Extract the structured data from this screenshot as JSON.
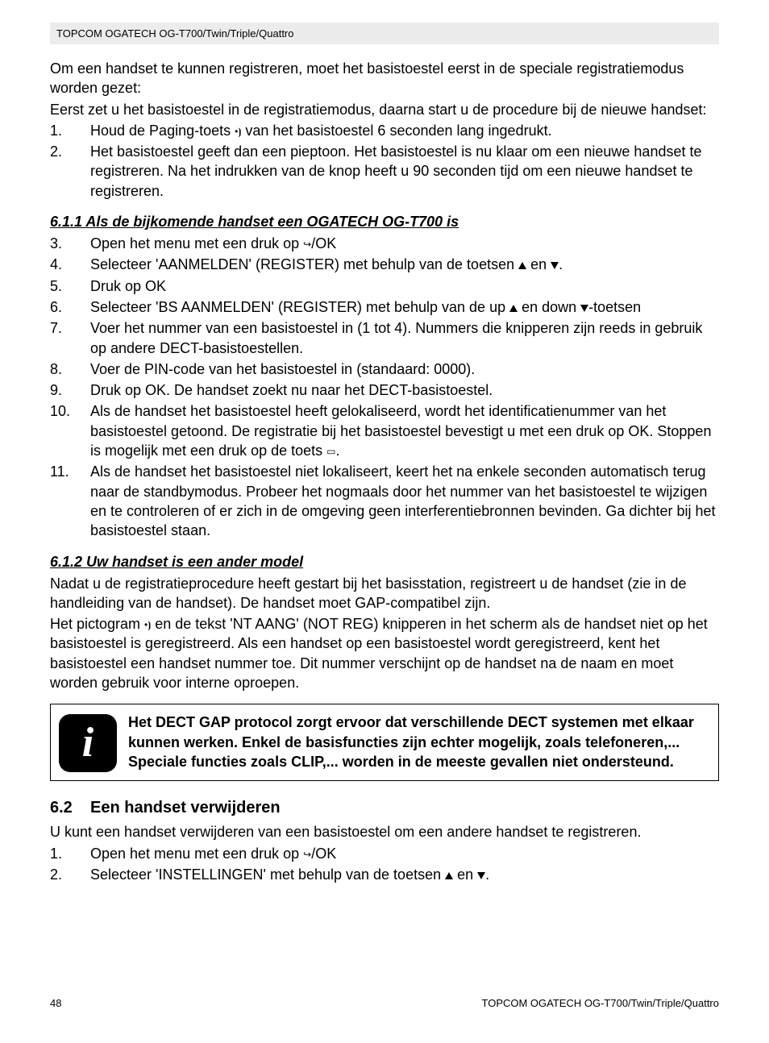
{
  "header": {
    "product_line": "TOPCOM OGATECH OG-T700/Twin/Triple/Quattro"
  },
  "intro": {
    "p1": "Om een handset te kunnen registreren, moet het basistoestel eerst in de speciale registratiemodus worden gezet:",
    "p2": "Eerst zet u het basistoestel in de registratiemodus, daarna start u de procedure bij de nieuwe handset:"
  },
  "list1": {
    "items": [
      {
        "n": "1.",
        "a": "Houd de Paging-toets ",
        "b": " van het basistoestel 6 seconden lang ingedrukt."
      },
      {
        "n": "2.",
        "a": "Het basistoestel geeft dan een pieptoon. Het basistoestel is nu klaar om een nieuwe handset te registreren. Na het indrukken van de knop heeft u 90 seconden tijd om een nieuwe handset te registreren."
      }
    ]
  },
  "sub611": {
    "title": "6.1.1 Als de bijkomende handset een OGATECH OG-T700 is",
    "items": [
      {
        "n": "3.",
        "a": "Open het menu met een druk op ",
        "b": "/OK"
      },
      {
        "n": "4.",
        "a": "Selecteer 'AANMELDEN' (REGISTER) met behulp van de toetsen ",
        "b": " en ",
        "c": "."
      },
      {
        "n": "5.",
        "a": "Druk op OK"
      },
      {
        "n": "6.",
        "a": "Selecteer 'BS AANMELDEN' (REGISTER) met behulp van de up ",
        "b": " en down ",
        "c": "-toetsen"
      },
      {
        "n": "7.",
        "a": "Voer het nummer van een basistoestel in (1 tot 4). Nummers die knipperen zijn reeds in gebruik op andere DECT-basistoestellen."
      },
      {
        "n": "8.",
        "a": "Voer de PIN-code van het basistoestel in (standaard: 0000)."
      },
      {
        "n": "9.",
        "a": "Druk op OK. De handset zoekt nu naar het DECT-basistoestel."
      },
      {
        "n": "10.",
        "a": "Als de handset het basistoestel heeft gelokaliseerd, wordt het identificatienummer van het basistoestel getoond. De registratie bij het basistoestel bevestigt u met een druk op OK. Stoppen is mogelijk met een druk op de toets ",
        "b": "."
      },
      {
        "n": "11.",
        "a": "Als de handset het basistoestel niet lokaliseert, keert het na enkele seconden automatisch terug naar de standbymodus. Probeer het nogmaals door het nummer van het basistoestel te wijzigen en te controleren of er zich in de omgeving geen interferentiebronnen bevinden. Ga dichter bij het basistoestel staan."
      }
    ]
  },
  "sub612": {
    "title": "6.1.2 Uw handset is een ander model",
    "p1": "Nadat u de registratieprocedure heeft gestart bij het basisstation, registreert u de handset (zie in de handleiding van de handset). De handset moet GAP-compatibel zijn.",
    "p2a": "Het pictogram ",
    "p2b": " en de tekst 'NT AANG' (NOT REG) knipperen in het scherm als de handset niet op het basistoestel is geregistreerd. Als een handset op een basistoestel wordt geregistreerd, kent het basistoestel een handset nummer toe. Dit nummer verschijnt op de handset na de naam en moet worden gebruik voor interne oproepen."
  },
  "note": {
    "text": "Het DECT GAP protocol zorgt ervoor dat verschillende DECT systemen met elkaar kunnen werken. Enkel de basisfuncties zijn echter mogelijk, zoals telefoneren,... Speciale functies zoals CLIP,... worden in de meeste gevallen niet ondersteund."
  },
  "sec62": {
    "num": "6.2",
    "title": "Een handset verwijderen",
    "p1": "U kunt een handset verwijderen van een basistoestel om een andere handset te registreren.",
    "items": [
      {
        "n": "1.",
        "a": "Open het menu met een druk op ",
        "b": "/OK"
      },
      {
        "n": "2.",
        "a": "Selecteer 'INSTELLINGEN' met behulp van de toetsen ",
        "b": " en ",
        "c": "."
      }
    ]
  },
  "footer": {
    "page_num": "48",
    "product_line": "TOPCOM OGATECH OG-T700/Twin/Triple/Quattro"
  },
  "glyphs": {
    "paging": "•⦘",
    "menu": "↪",
    "book": "▭"
  }
}
